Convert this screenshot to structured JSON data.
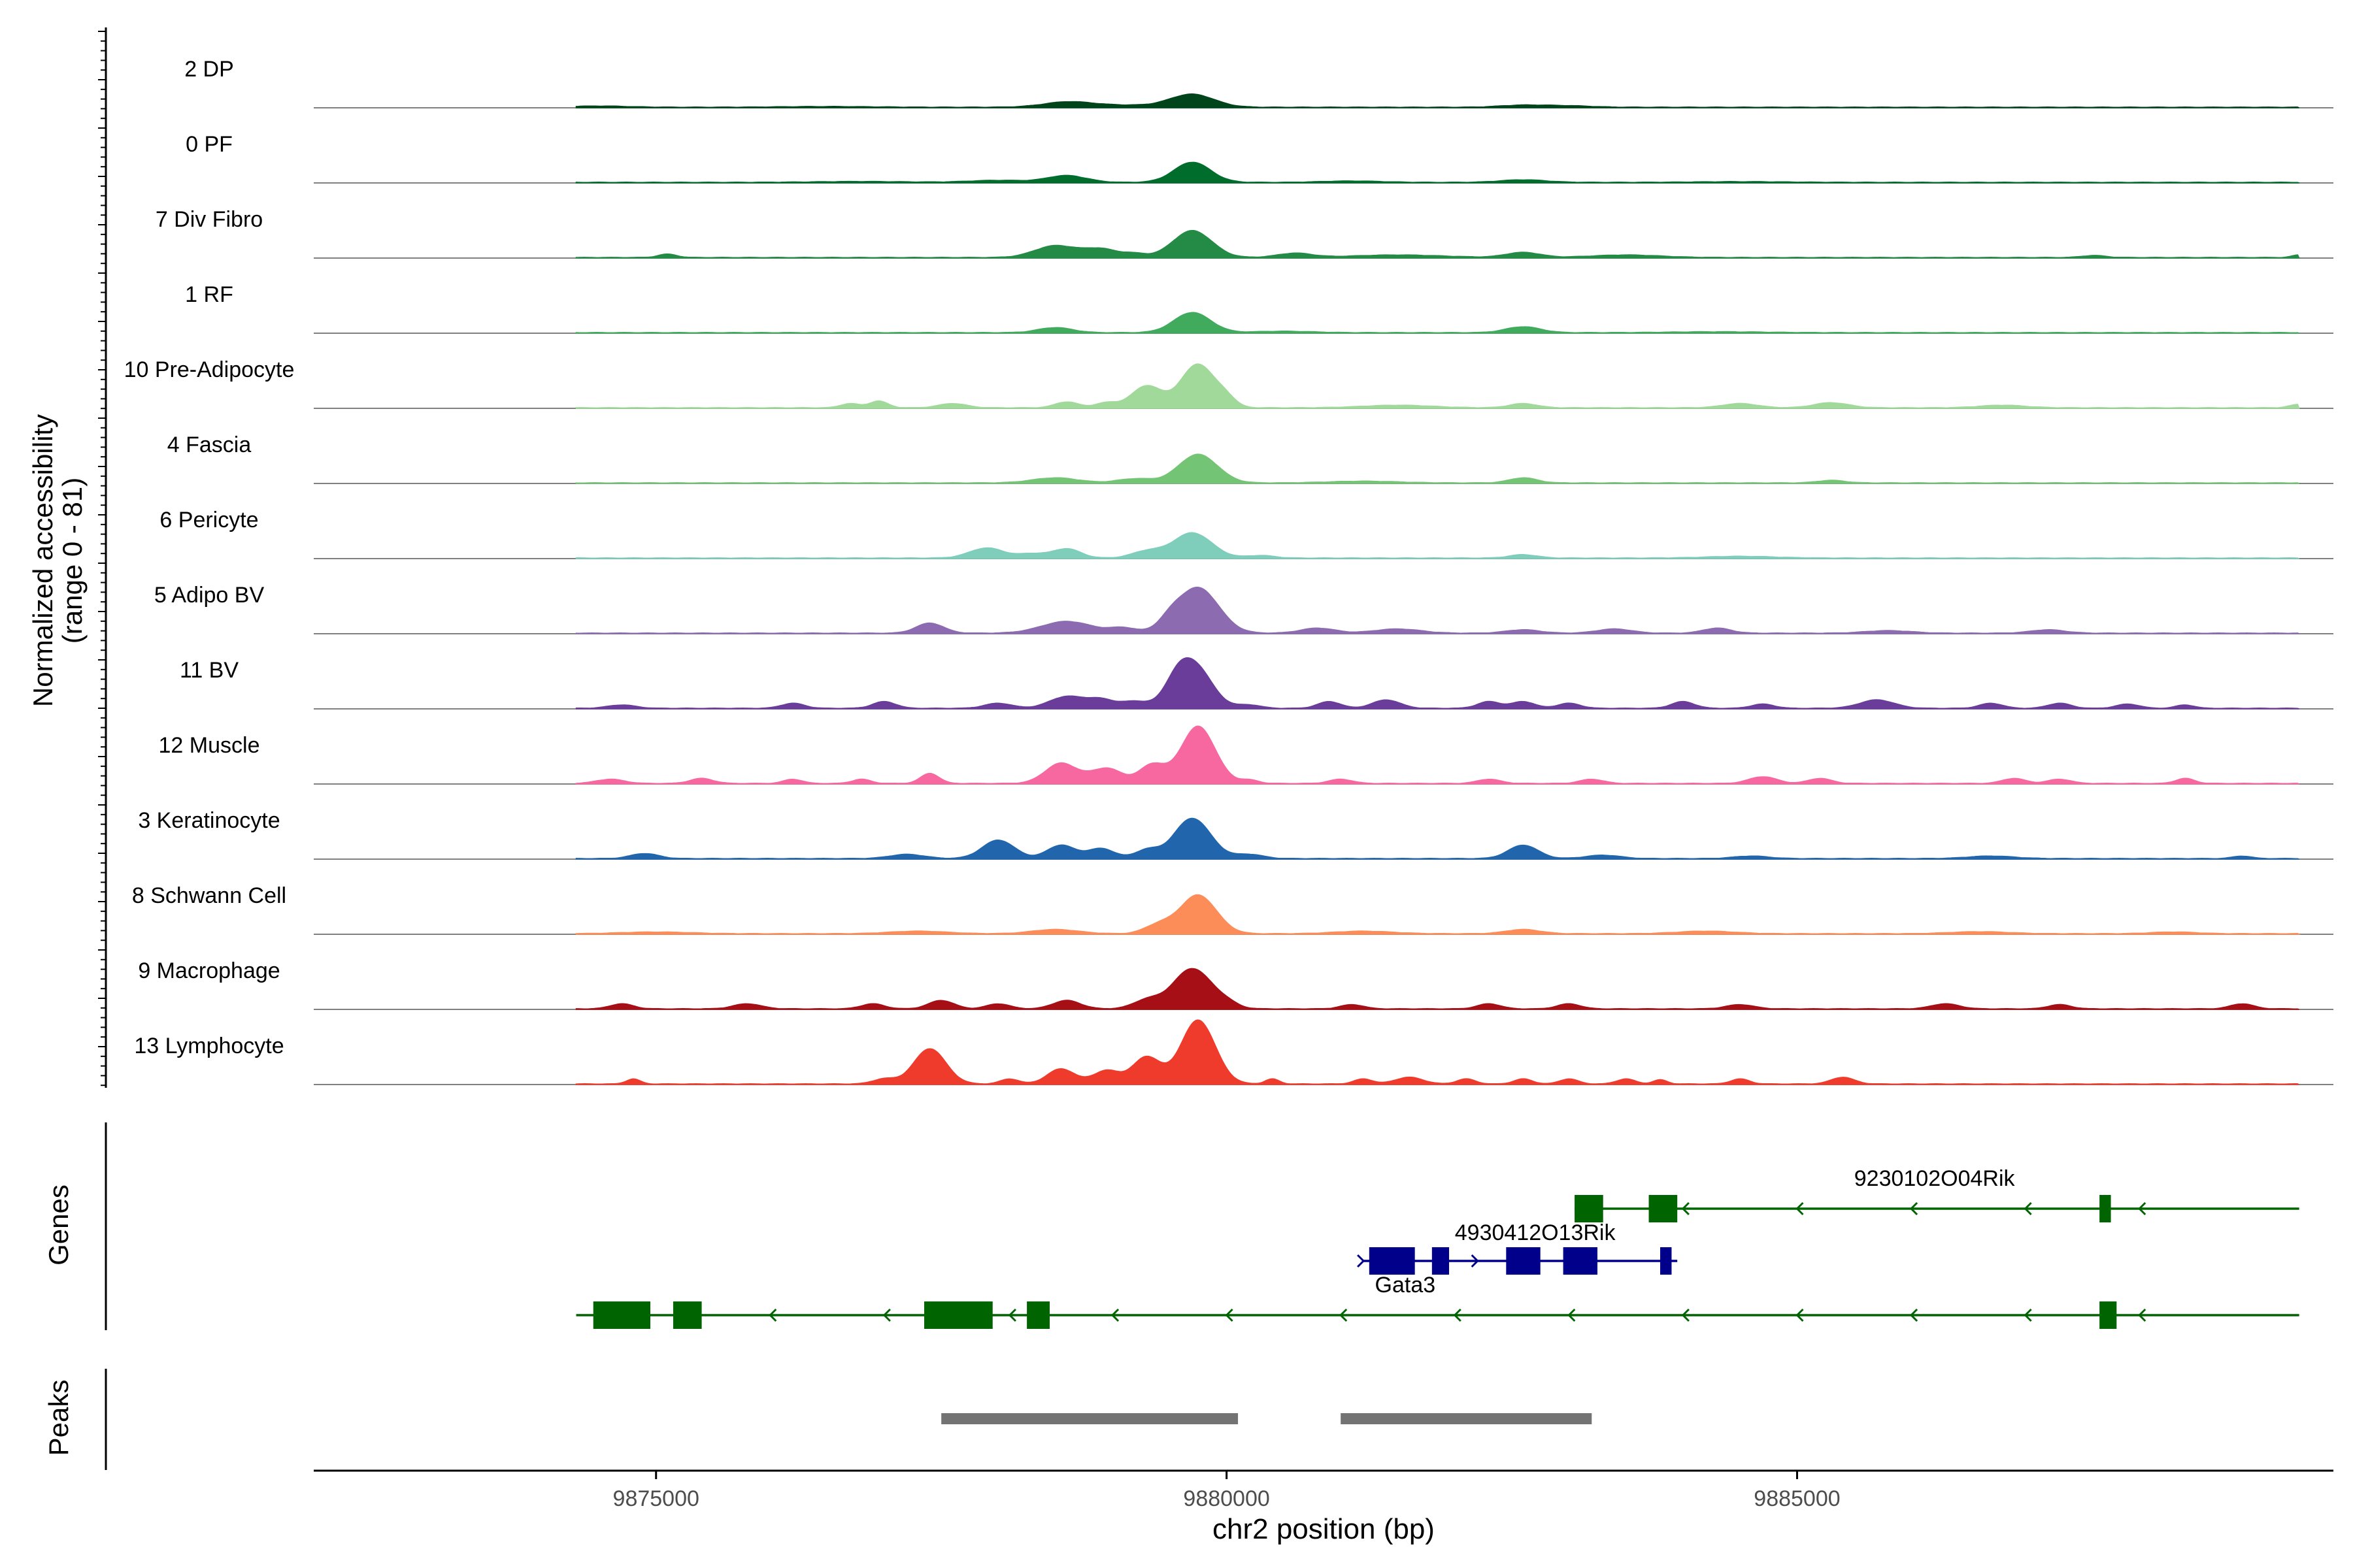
{
  "chart_data": {
    "type": "coverage-track",
    "region": {
      "chrom": "chr2",
      "start": 9872000,
      "end": 9889700
    },
    "yaxis_label_line1": "Normalized accessibility",
    "yaxis_label_line2": "(range 0 - 81)",
    "xlabel": "chr2 position (bp)",
    "xticks": [
      {
        "value": 9875000,
        "label": "9875000"
      },
      {
        "value": 9880000,
        "label": "9880000"
      },
      {
        "value": 9885000,
        "label": "9885000"
      }
    ],
    "genes_label": "Genes",
    "peaks_label": "Peaks",
    "tracks": [
      {
        "label": "2 DP",
        "color": "#00441b",
        "peaks": [
          [
            9879700,
            7.5,
            190
          ],
          [
            9878600,
            2.5,
            200
          ],
          [
            9879000,
            1.3,
            400
          ],
          [
            9882600,
            1.2,
            200
          ],
          [
            9883000,
            0.8,
            200
          ],
          [
            9874500,
            0.7,
            250
          ],
          [
            9876500,
            0.4,
            400
          ]
        ]
      },
      {
        "label": "0 PF",
        "color": "#006d2c",
        "peaks": [
          [
            9879700,
            12,
            160
          ],
          [
            9878600,
            4,
            170
          ],
          [
            9878000,
            1.2,
            250
          ],
          [
            9881100,
            0.8,
            250
          ],
          [
            9882600,
            1.5,
            200
          ],
          [
            9876800,
            0.5,
            400
          ],
          [
            9884500,
            0.4,
            400
          ]
        ]
      },
      {
        "label": "7 Div Fibro",
        "color": "#238b45",
        "peaks": [
          [
            9879700,
            16,
            170
          ],
          [
            9878500,
            7,
            180
          ],
          [
            9878900,
            5,
            150
          ],
          [
            9875100,
            2,
            80
          ],
          [
            9879200,
            2,
            100
          ],
          [
            9880600,
            2.5,
            150
          ],
          [
            9882600,
            3,
            150
          ],
          [
            9883500,
            1.5,
            300
          ],
          [
            9887600,
            1.2,
            100
          ],
          [
            9889400,
            1.5,
            60
          ],
          [
            9881500,
            1.5,
            400
          ]
        ]
      },
      {
        "label": "1 RF",
        "color": "#41ab5d",
        "peaks": [
          [
            9879700,
            12,
            160
          ],
          [
            9878500,
            3,
            150
          ],
          [
            9882600,
            3.5,
            150
          ],
          [
            9880500,
            0.8,
            250
          ],
          [
            9884300,
            0.5,
            400
          ]
        ]
      },
      {
        "label": "10 Pre-Adipocyte",
        "color": "#a1d99b",
        "peaks": [
          [
            9879750,
            26,
            150
          ],
          [
            9879300,
            13,
            130
          ],
          [
            9876700,
            2.5,
            80
          ],
          [
            9876950,
            4,
            80
          ],
          [
            9877600,
            2.5,
            120
          ],
          [
            9878600,
            3.5,
            100
          ],
          [
            9878950,
            3,
            100
          ],
          [
            9880000,
            4,
            80
          ],
          [
            9882600,
            2.5,
            120
          ],
          [
            9884500,
            2.5,
            150
          ],
          [
            9885300,
            3,
            150
          ],
          [
            9881500,
            1.5,
            300
          ],
          [
            9886800,
            1.5,
            200
          ],
          [
            9889400,
            2,
            80
          ]
        ]
      },
      {
        "label": "4 Fascia",
        "color": "#74c476",
        "peaks": [
          [
            9879750,
            17,
            170
          ],
          [
            9878500,
            3,
            200
          ],
          [
            9879200,
            2.5,
            150
          ],
          [
            9882600,
            3,
            120
          ],
          [
            9885300,
            1.5,
            120
          ],
          [
            9881200,
            1,
            300
          ]
        ]
      },
      {
        "label": "6 Pericyte",
        "color": "#7fcdbb",
        "peaks": [
          [
            9879700,
            15,
            170
          ],
          [
            9877900,
            6,
            150
          ],
          [
            9878600,
            5.5,
            120
          ],
          [
            9879300,
            4,
            130
          ],
          [
            9878300,
            2.5,
            120
          ],
          [
            9880300,
            1.5,
            120
          ],
          [
            9882600,
            2,
            120
          ],
          [
            9884500,
            1,
            300
          ]
        ]
      },
      {
        "label": "5 Adipo BV",
        "color": "#8c6bb1",
        "peaks": [
          [
            9879750,
            27,
            180
          ],
          [
            9877400,
            6,
            120
          ],
          [
            9878600,
            7,
            220
          ],
          [
            9879100,
            3,
            120
          ],
          [
            9879500,
            5,
            100
          ],
          [
            9880800,
            3,
            150
          ],
          [
            9881500,
            2.5,
            200
          ],
          [
            9882600,
            2,
            150
          ],
          [
            9883400,
            2.5,
            150
          ],
          [
            9884300,
            3,
            120
          ],
          [
            9885800,
            1.5,
            200
          ],
          [
            9887200,
            2,
            150
          ]
        ]
      },
      {
        "label": "11 BV",
        "color": "#6a3d9a",
        "peaks": [
          [
            9879700,
            27,
            160
          ],
          [
            9878600,
            7,
            150
          ],
          [
            9878900,
            5,
            120
          ],
          [
            9879200,
            4,
            120
          ],
          [
            9879550,
            7,
            100
          ],
          [
            9877000,
            4,
            100
          ],
          [
            9874700,
            2,
            120
          ],
          [
            9876200,
            3,
            100
          ],
          [
            9878000,
            3,
            120
          ],
          [
            9880900,
            4,
            100
          ],
          [
            9881400,
            5,
            120
          ],
          [
            9882300,
            4,
            100
          ],
          [
            9882600,
            4,
            100
          ],
          [
            9883000,
            3,
            100
          ],
          [
            9884000,
            4,
            100
          ],
          [
            9885700,
            5,
            150
          ],
          [
            9886700,
            3,
            100
          ],
          [
            9887300,
            3,
            100
          ],
          [
            9887900,
            2.5,
            100
          ],
          [
            9888400,
            2,
            80
          ],
          [
            9880200,
            2,
            100
          ],
          [
            9884700,
            2.5,
            100
          ]
        ]
      },
      {
        "label": "12 Muscle",
        "color": "#f768a1",
        "peaks": [
          [
            9879750,
            34,
            150
          ],
          [
            9878550,
            12,
            140
          ],
          [
            9878950,
            9,
            140
          ],
          [
            9879350,
            11,
            110
          ],
          [
            9877400,
            6,
            80
          ],
          [
            9874600,
            2.5,
            120
          ],
          [
            9875400,
            3,
            100
          ],
          [
            9876200,
            2.5,
            80
          ],
          [
            9876800,
            2.5,
            80
          ],
          [
            9880200,
            2,
            80
          ],
          [
            9881000,
            2.5,
            100
          ],
          [
            9882300,
            2.5,
            100
          ],
          [
            9883200,
            2.5,
            100
          ],
          [
            9884700,
            4,
            120
          ],
          [
            9885200,
            3,
            100
          ],
          [
            9886900,
            3,
            100
          ],
          [
            9887300,
            2.5,
            100
          ],
          [
            9888400,
            3,
            80
          ]
        ]
      },
      {
        "label": "3 Keratinocyte",
        "color": "#2166ac",
        "peaks": [
          [
            9879700,
            24,
            160
          ],
          [
            9878000,
            11,
            140
          ],
          [
            9878550,
            8,
            120
          ],
          [
            9878900,
            6,
            120
          ],
          [
            9879300,
            5,
            100
          ],
          [
            9874900,
            3,
            120
          ],
          [
            9877200,
            2.5,
            150
          ],
          [
            9880200,
            2.5,
            120
          ],
          [
            9882600,
            8,
            130
          ],
          [
            9883300,
            2,
            150
          ],
          [
            9884600,
            1.5,
            150
          ],
          [
            9886700,
            1.5,
            200
          ],
          [
            9888900,
            1.5,
            80
          ]
        ]
      },
      {
        "label": "8 Schwann Cell",
        "color": "#fc8d59",
        "peaks": [
          [
            9879750,
            23,
            160
          ],
          [
            9879400,
            5,
            120
          ],
          [
            9878500,
            2.5,
            200
          ],
          [
            9877300,
            1.5,
            250
          ],
          [
            9881200,
            1.5,
            250
          ],
          [
            9882600,
            2.5,
            150
          ],
          [
            9884200,
            1.5,
            250
          ],
          [
            9875000,
            1,
            300
          ],
          [
            9886600,
            1.2,
            250
          ],
          [
            9888300,
            1,
            200
          ]
        ]
      },
      {
        "label": "9 Macrophage",
        "color": "#a50f15",
        "peaks": [
          [
            9879700,
            24,
            170
          ],
          [
            9877500,
            5,
            110
          ],
          [
            9878600,
            5,
            120
          ],
          [
            9879300,
            5,
            120
          ],
          [
            9874700,
            3,
            100
          ],
          [
            9875800,
            3,
            120
          ],
          [
            9876900,
            3,
            100
          ],
          [
            9878000,
            3,
            100
          ],
          [
            9880000,
            2.5,
            100
          ],
          [
            9881100,
            2.5,
            100
          ],
          [
            9882300,
            3,
            100
          ],
          [
            9883000,
            3,
            100
          ],
          [
            9884500,
            2.5,
            120
          ],
          [
            9886300,
            3,
            120
          ],
          [
            9887300,
            2.5,
            100
          ],
          [
            9888900,
            3,
            100
          ]
        ]
      },
      {
        "label": "13 Lymphocyte",
        "color": "#ef3b2c",
        "peaks": [
          [
            9879750,
            38,
            150
          ],
          [
            9877400,
            21,
            140
          ],
          [
            9879300,
            16,
            120
          ],
          [
            9878550,
            9,
            120
          ],
          [
            9878950,
            8,
            120
          ],
          [
            9874800,
            3,
            60
          ],
          [
            9877000,
            3,
            100
          ],
          [
            9878100,
            3,
            80
          ],
          [
            9880400,
            3,
            60
          ],
          [
            9881200,
            3,
            80
          ],
          [
            9881600,
            4,
            120
          ],
          [
            9882100,
            3,
            80
          ],
          [
            9882600,
            3,
            80
          ],
          [
            9883000,
            3,
            80
          ],
          [
            9883500,
            3,
            80
          ],
          [
            9884500,
            3,
            80
          ],
          [
            9885400,
            4,
            100
          ],
          [
            9883800,
            2.5,
            60
          ]
        ]
      }
    ],
    "gene_rows": [
      {
        "name": "9230102O04Rik",
        "color": "#006400",
        "strand": "-",
        "row": 0,
        "line": [
          9883050,
          9889400
        ],
        "exons": [
          [
            9883050,
            9883300
          ],
          [
            9883700,
            9883950
          ],
          [
            9887650,
            9887750
          ]
        ],
        "arrows": [
          9884000,
          9885000,
          9886000,
          9887000,
          9888000
        ]
      },
      {
        "name": "Gata3",
        "color": "#00008b",
        "strand": "+",
        "row": 1,
        "line": [
          9881200,
          9883950
        ],
        "exons": [
          [
            9881250,
            9881650
          ],
          [
            9881800,
            9881950
          ],
          [
            9882450,
            9882750
          ],
          [
            9882950,
            9883250
          ],
          [
            9883800,
            9883900
          ]
        ],
        "arrows": [
          9881200,
          9882200
        ]
      },
      {
        "name": "4930412O13Rik",
        "color": "#006400",
        "strand": "-",
        "row": 2,
        "line": [
          9874300,
          9889400
        ],
        "exons": [
          [
            9874450,
            9874950
          ],
          [
            9875150,
            9875400
          ],
          [
            9877350,
            9877950
          ],
          [
            9878250,
            9878450
          ],
          [
            9887650,
            9887800
          ]
        ],
        "arrows": [
          9876000,
          9877000,
          9878100,
          9879000,
          9880000,
          9881000,
          9882000,
          9883000,
          9884000,
          9885000,
          9886000,
          9887000,
          9888000
        ]
      }
    ],
    "gene_name_labels": [
      {
        "text": "9230102O04Rik",
        "x_value": 9885500,
        "anchor": "top"
      },
      {
        "text": "4930412O13Rik",
        "x_value": 9882000,
        "anchor": "mid"
      },
      {
        "text": "Gata3",
        "x_value": 9881300,
        "anchor": "below"
      }
    ],
    "peaks": [
      [
        9877500,
        9880100
      ],
      [
        9881000,
        9883200
      ]
    ]
  }
}
